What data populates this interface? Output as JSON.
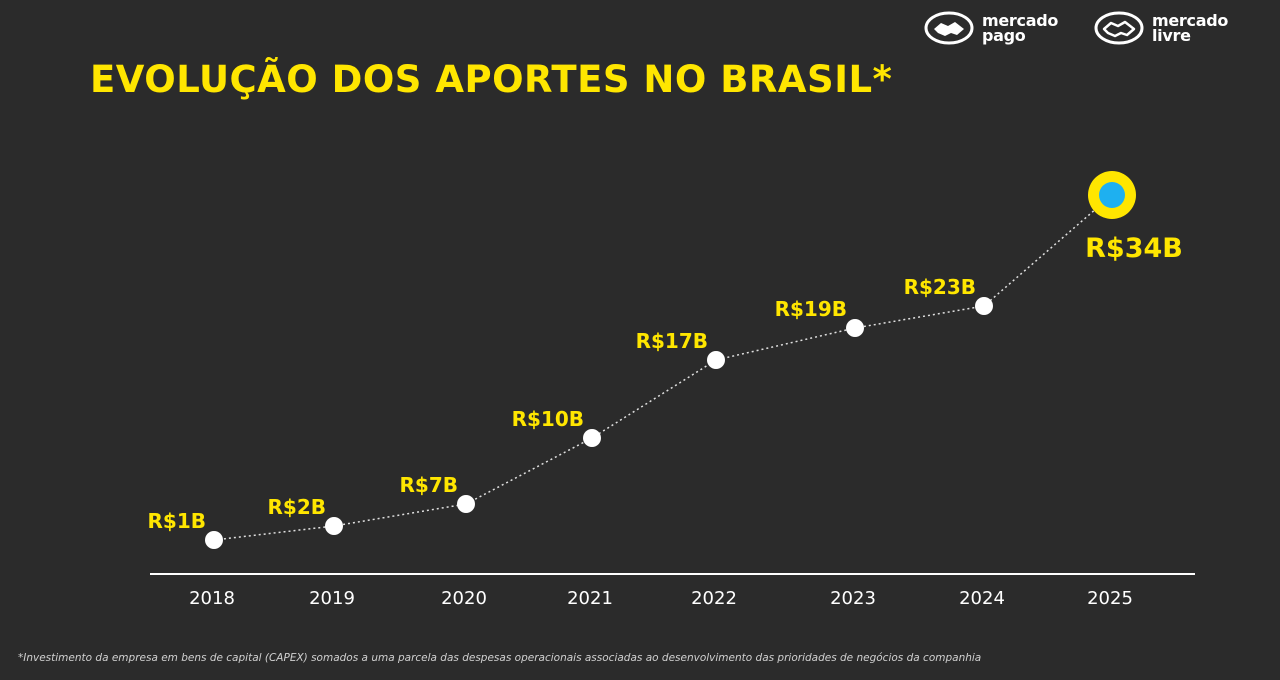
{
  "header": {
    "title": "EVOLUÇÃO DOS APORTES NO BRASIL*",
    "logos": [
      {
        "icon": "handshake-icon",
        "text": "mercado\npago"
      },
      {
        "icon": "handshake-icon",
        "text": "mercado\nlivre"
      }
    ]
  },
  "footnote": "*Investimento da empresa em bens de capital (CAPEX) somados a uma parcela das despesas operacionais associadas ao desenvolvimento das prioridades de negócios da companhia",
  "colors": {
    "background": "#2b2b2b",
    "accent": "#ffe600",
    "highlight_point": "#1eb0f0",
    "point": "#ffffff"
  },
  "chart_data": {
    "type": "line",
    "title": "EVOLUÇÃO DOS APORTES NO BRASIL*",
    "categories": [
      "2018",
      "2019",
      "2020",
      "2021",
      "2022",
      "2023",
      "2024",
      "2025"
    ],
    "values": [
      1,
      2,
      7,
      10,
      17,
      19,
      23,
      34
    ],
    "data_labels": [
      "R$1B",
      "R$2B",
      "R$7B",
      "R$10B",
      "R$17B",
      "R$19B",
      "R$23B",
      "R$34B"
    ],
    "unit": "R$ bilhões",
    "line_style": "dotted",
    "highlight_last": true,
    "grid": false,
    "legend": "none"
  }
}
